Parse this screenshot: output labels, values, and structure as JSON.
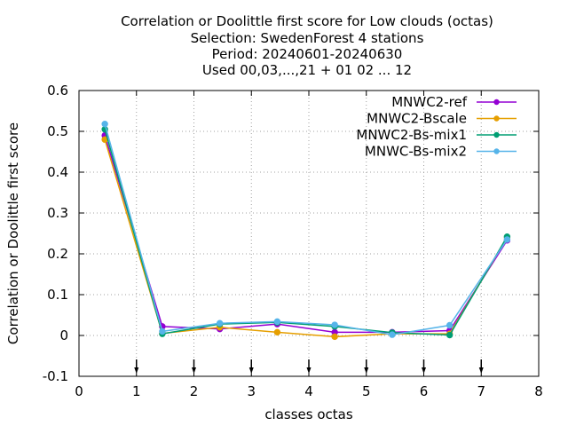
{
  "chart_data": {
    "type": "line",
    "title_lines": [
      "Correlation or Doolittle first score  for Low clouds (octas)",
      "Selection: SwedenForest      4 stations",
      "Period: 20240601-20240630",
      "Used 00,03,...,21 + 01 02 ... 12"
    ],
    "xlabel": "classes octas",
    "ylabel": "Correlation or Doolittle first score",
    "xlim": [
      0,
      8
    ],
    "ylim": [
      -0.1,
      0.6
    ],
    "xticks": [
      "0",
      "1",
      "2",
      "3",
      "4",
      "5",
      "6",
      "7",
      "8"
    ],
    "yticks": [
      "-0.1",
      "0",
      "0.1",
      "0.2",
      "0.3",
      "0.4",
      "0.5",
      "0.6"
    ],
    "grid": true,
    "legend_position": "top-right",
    "arrow_markers_x": [
      1,
      2,
      3,
      4,
      5,
      6,
      7
    ],
    "x": [
      0.45,
      1.45,
      2.45,
      3.45,
      4.45,
      5.45,
      6.45,
      7.45
    ],
    "series": [
      {
        "name": "MNWC2-ref",
        "color": "#9400d3",
        "values": [
          0.49,
          0.022,
          0.016,
          0.028,
          0.008,
          0.008,
          0.012,
          0.233
        ]
      },
      {
        "name": "MNWC2-Bscale",
        "color": "#e69f00",
        "values": [
          0.48,
          0.005,
          0.02,
          0.008,
          -0.003,
          0.004,
          0.004,
          0.24
        ]
      },
      {
        "name": "MNWC2-Bs-mix1",
        "color": "#009e73",
        "values": [
          0.505,
          0.004,
          0.028,
          0.032,
          0.022,
          0.007,
          0.001,
          0.242
        ]
      },
      {
        "name": "MNWC-Bs-mix2",
        "color": "#56b4e9",
        "values": [
          0.518,
          0.01,
          0.03,
          0.034,
          0.026,
          0.002,
          0.025,
          0.235
        ]
      }
    ]
  }
}
